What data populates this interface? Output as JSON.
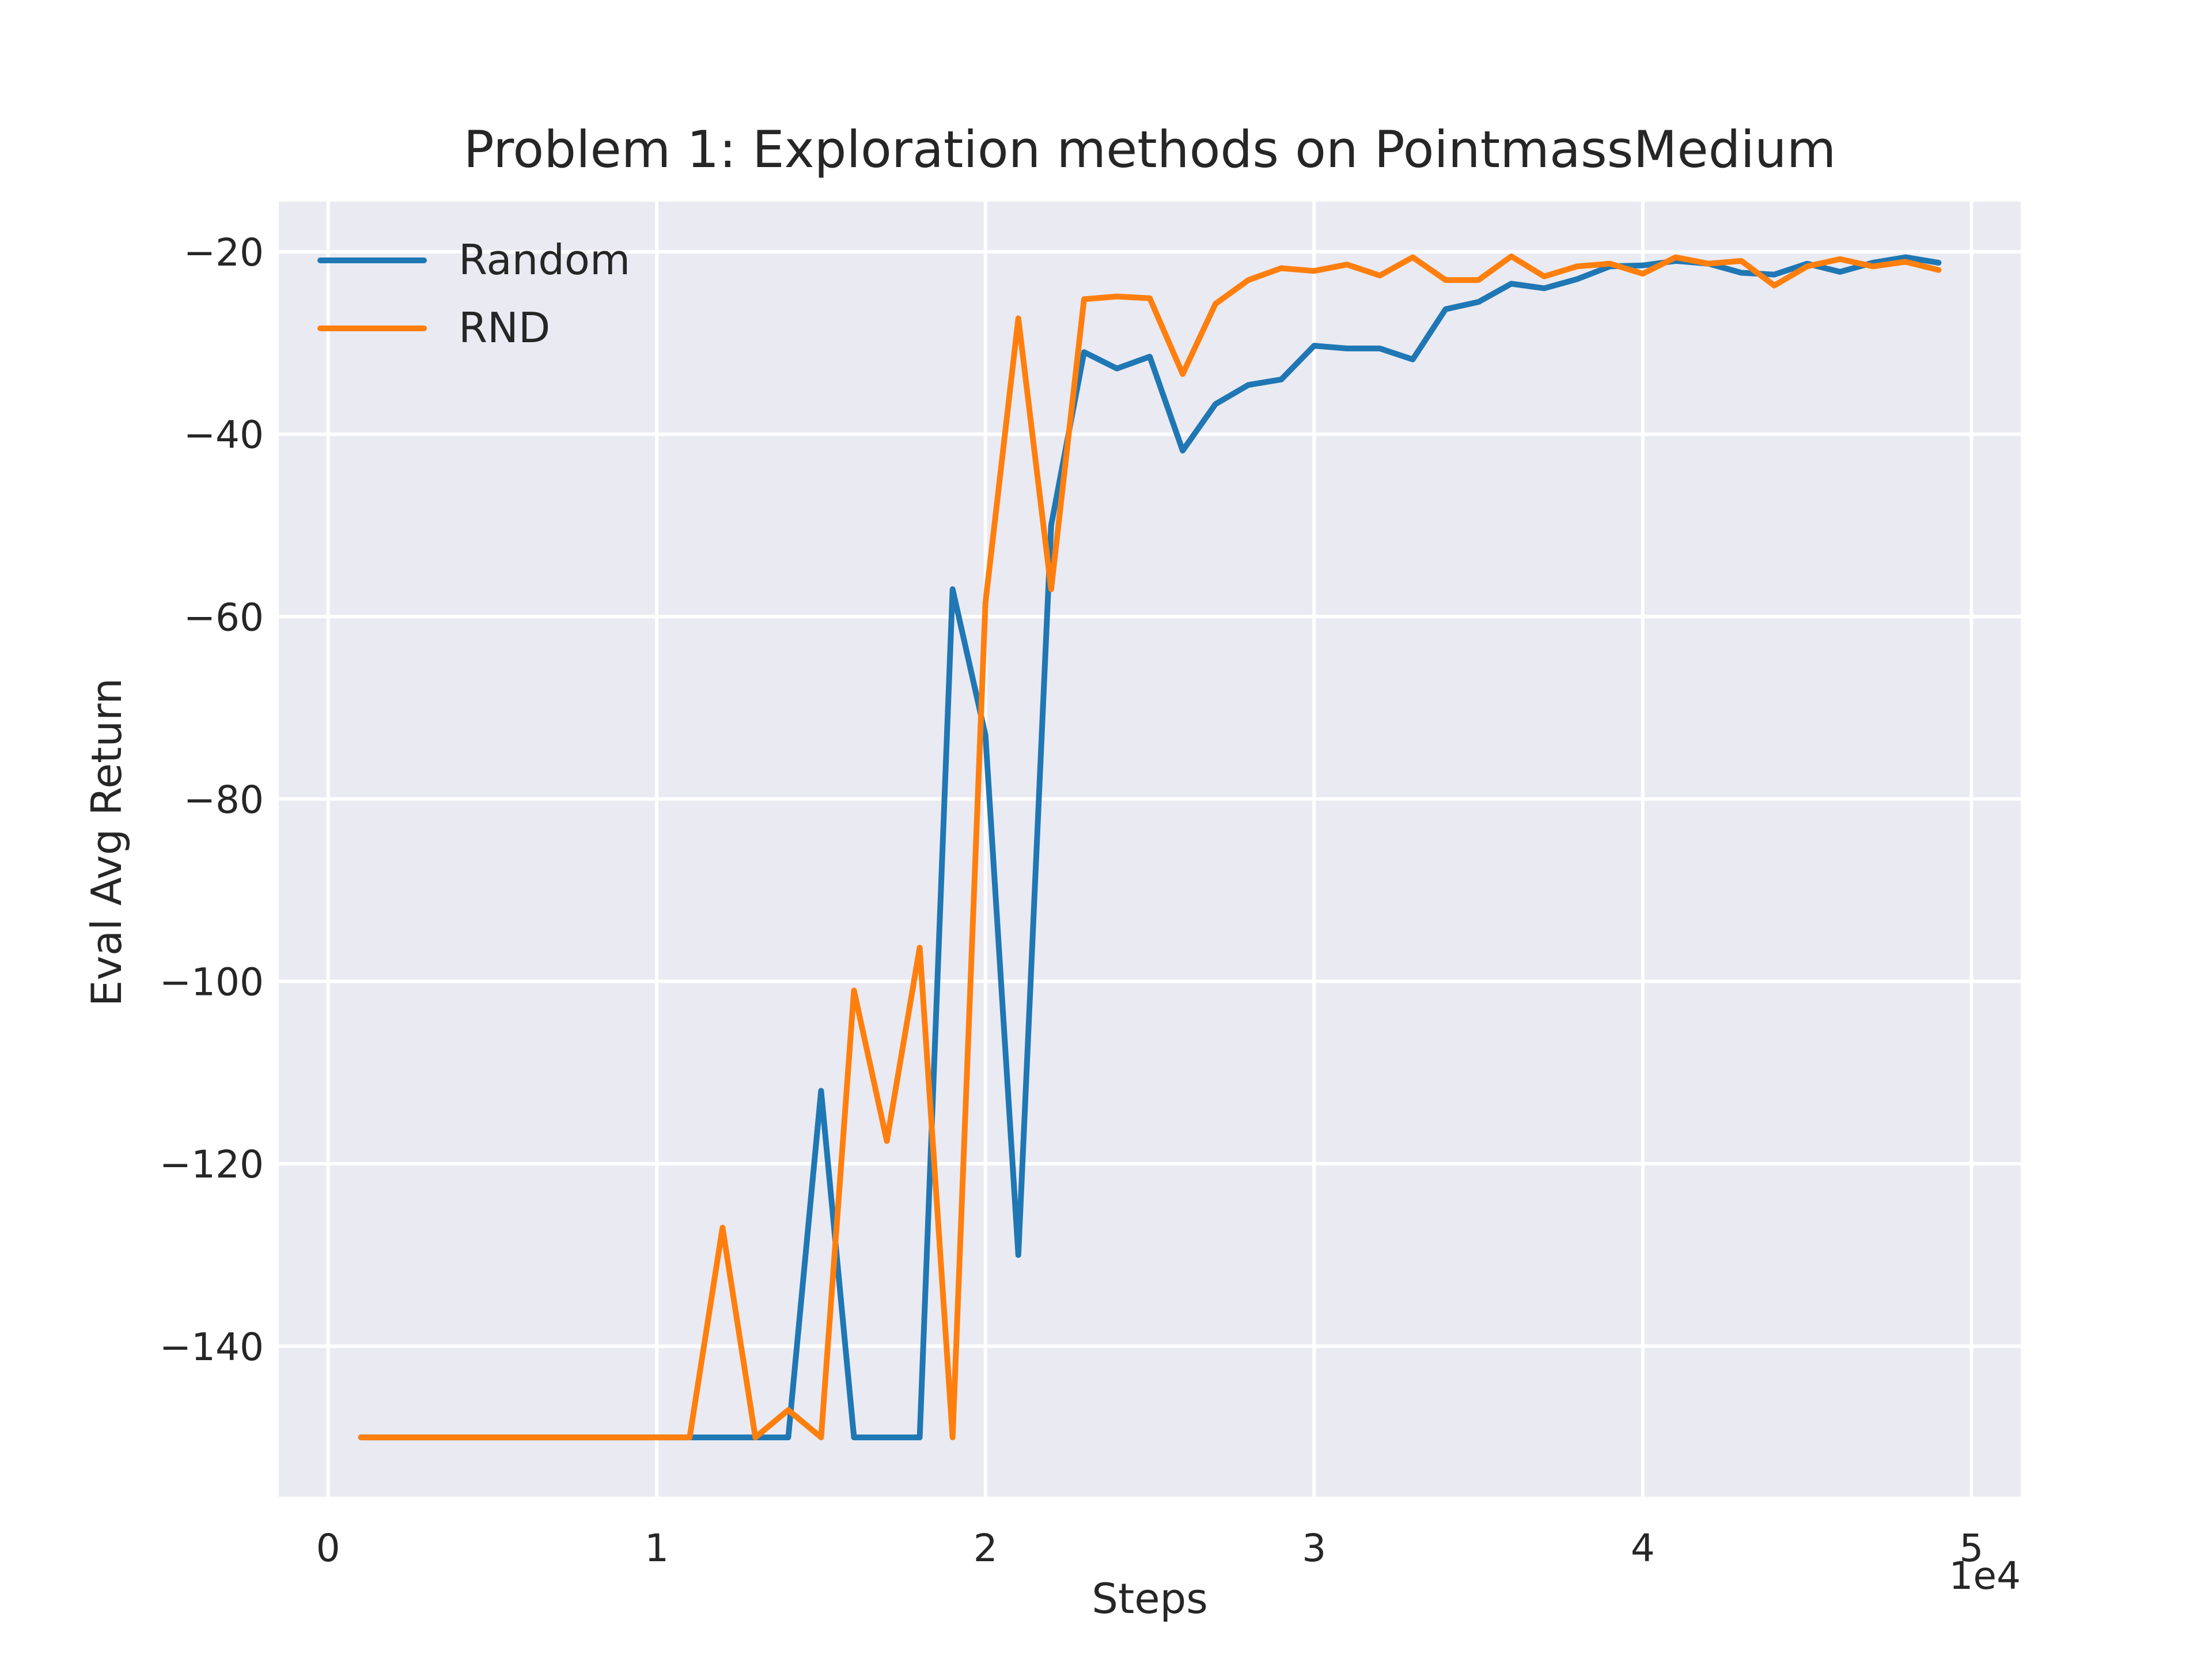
{
  "chart_data": {
    "type": "line",
    "title": "Problem 1: Exploration methods on PointmassMedium",
    "xlabel": "Steps",
    "ylabel": "Eval Avg Return",
    "x_offset_label": "1e4",
    "xlim": [
      -0.15,
      5.15
    ],
    "ylim": [
      -156.5,
      -14.5
    ],
    "x_ticks": [
      0,
      1,
      2,
      3,
      4,
      5
    ],
    "x_tick_labels": [
      "0",
      "1",
      "2",
      "3",
      "4",
      "5"
    ],
    "y_ticks": [
      -140,
      -120,
      -100,
      -80,
      -60,
      -40,
      -20
    ],
    "y_tick_labels": [
      "−140",
      "−120",
      "−100",
      "−80",
      "−60",
      "−40",
      "−20"
    ],
    "grid": true,
    "legend_position": "top-left",
    "background_color": "#eaeaf2",
    "x": [
      0.1,
      0.2,
      0.3,
      0.4,
      0.5,
      0.6,
      0.7,
      0.8,
      0.9,
      1.0,
      1.1,
      1.2,
      1.3,
      1.4,
      1.5,
      1.6,
      1.7,
      1.8,
      1.9,
      2.0,
      2.1,
      2.2,
      2.3,
      2.4,
      2.5,
      2.6,
      2.7,
      2.8,
      2.9,
      3.0,
      3.1,
      3.2,
      3.3,
      3.4,
      3.5,
      3.6,
      3.7,
      3.8,
      3.9,
      4.0,
      4.1,
      4.2,
      4.3,
      4.4,
      4.5,
      4.6,
      4.7,
      4.8,
      4.9
    ],
    "series": [
      {
        "name": "Random",
        "color": "#1f77b4",
        "values": [
          -150,
          -150,
          -150,
          -150,
          -150,
          -150,
          -150,
          -150,
          -150,
          -150,
          -150,
          -150,
          -150,
          -150,
          -112,
          -150,
          -150,
          -150,
          -57,
          -73,
          -130,
          -50,
          -31,
          -32.8,
          -31.5,
          -41.8,
          -36.7,
          -34.6,
          -34,
          -30.3,
          -30.6,
          -30.6,
          -31.8,
          -26.3,
          -25.5,
          -23.5,
          -24,
          -23,
          -21.6,
          -21.5,
          -21,
          -21.3,
          -22.3,
          -22.5,
          -21.3,
          -22.2,
          -21.2,
          -20.6,
          -21.2
        ]
      },
      {
        "name": "RND",
        "color": "#ff7f0e",
        "values": [
          -150,
          -150,
          -150,
          -150,
          -150,
          -150,
          -150,
          -150,
          -150,
          -150,
          -150,
          -127,
          -150,
          -147,
          -150,
          -101,
          -117.5,
          -96.3,
          -150,
          -58.5,
          -27.3,
          -57,
          -25.2,
          -24.9,
          -25.1,
          -33.4,
          -25.7,
          -23.1,
          -21.8,
          -22.1,
          -21.4,
          -22.6,
          -20.6,
          -23.1,
          -23.1,
          -20.5,
          -22.7,
          -21.6,
          -21.3,
          -22.4,
          -20.6,
          -21.3,
          -21,
          -23.7,
          -21.6,
          -20.8,
          -21.6,
          -21.1,
          -22
        ]
      }
    ]
  }
}
